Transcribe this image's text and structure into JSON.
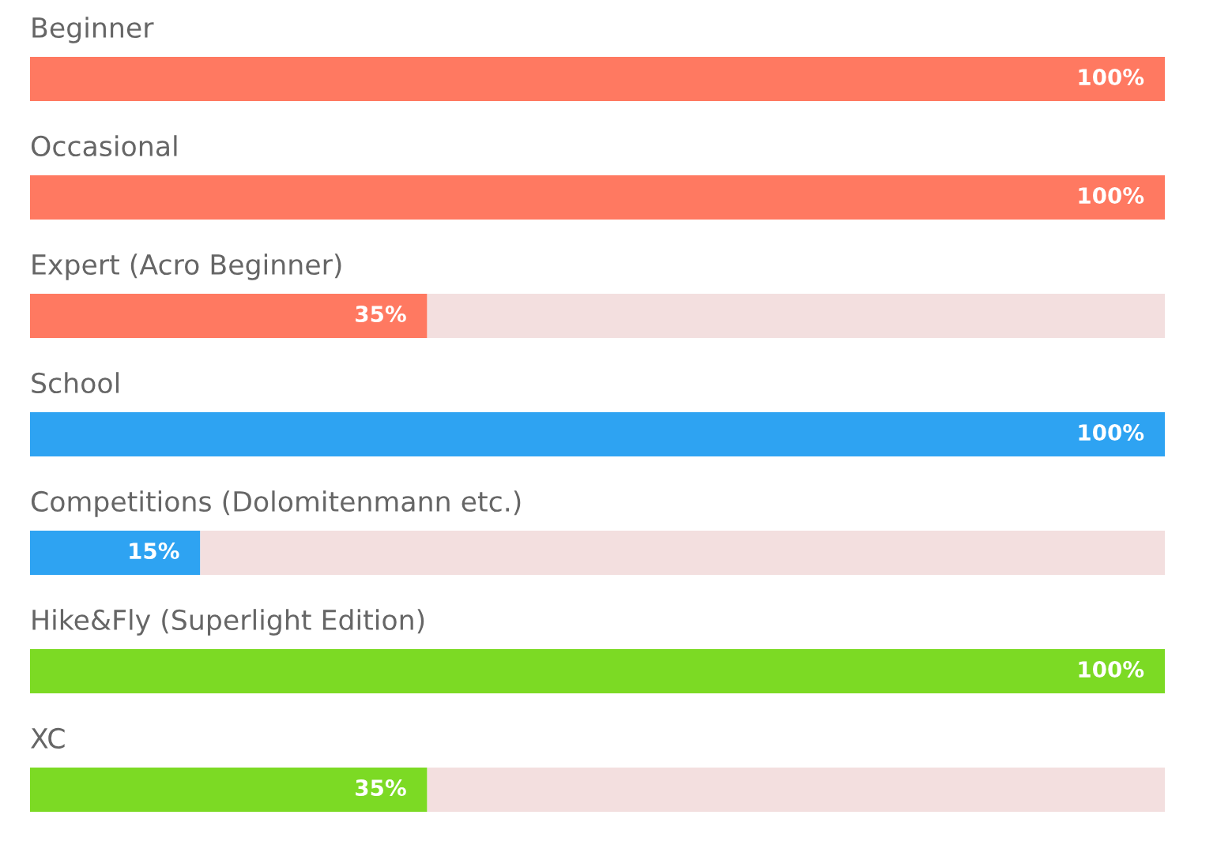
{
  "chart_data": {
    "type": "bar",
    "orientation": "horizontal",
    "stacked": true,
    "legend": false,
    "categories": [
      "Beginner",
      "Occasional",
      "Expert (Acro Beginner)",
      "School",
      "Competitions (Dolomitenmann etc.)",
      "Hike&Fly (Superlight Edition)",
      "XC"
    ],
    "series": [
      {
        "colors": [
          "#ff7961",
          "#ff7961",
          "#ff7961",
          "#2ea3f2",
          "#2ea3f2",
          "#7cda24",
          "#7cda24"
        ],
        "values": [
          100,
          100,
          35,
          100,
          15,
          100,
          35
        ],
        "value_labels": [
          "100%",
          "100%",
          "35%",
          "100%",
          "15%",
          "100%",
          "35%"
        ]
      },
      {
        "color": "#f3dfdf",
        "values": [
          0,
          0,
          65,
          0,
          85,
          0,
          65
        ]
      }
    ]
  }
}
